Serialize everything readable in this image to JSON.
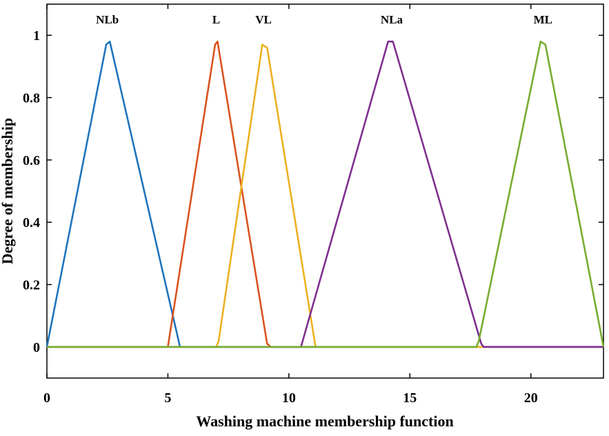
{
  "chart_data": {
    "type": "line",
    "xlabel": "Washing machine membership function",
    "ylabel": "Degree of membership",
    "xlim": [
      0,
      23
    ],
    "ylim": [
      -0.1,
      1.1
    ],
    "x_ticks": [
      0,
      5,
      10,
      15,
      20
    ],
    "y_ticks": [
      0,
      0.2,
      0.4,
      0.6,
      0.8,
      1
    ],
    "x_tick_labels": [
      "0",
      "5",
      "10",
      "15",
      "20"
    ],
    "y_tick_labels": [
      "0",
      "0.2",
      "0.4",
      "0.6",
      "0.8",
      "1"
    ],
    "grid": false,
    "series": [
      {
        "name": "NLb",
        "color": "#1f74bd",
        "points": [
          [
            0,
            0
          ],
          [
            2.45,
            0.97
          ],
          [
            2.6,
            0.98
          ],
          [
            5.5,
            0
          ],
          [
            23,
            0
          ]
        ]
      },
      {
        "name": "L",
        "color": "#d9531e",
        "points": [
          [
            0,
            0
          ],
          [
            5.0,
            0
          ],
          [
            6.95,
            0.97
          ],
          [
            7.05,
            0.98
          ],
          [
            9.1,
            0.01
          ],
          [
            9.25,
            0
          ],
          [
            23,
            0
          ]
        ]
      },
      {
        "name": "VL",
        "color": "#edb120",
        "points": [
          [
            0,
            0
          ],
          [
            7.0,
            0
          ],
          [
            7.1,
            0.02
          ],
          [
            8.9,
            0.97
          ],
          [
            9.1,
            0.96
          ],
          [
            11.1,
            0
          ],
          [
            23,
            0
          ]
        ]
      },
      {
        "name": "NLa",
        "color": "#7e2f8e",
        "points": [
          [
            0,
            0
          ],
          [
            10.5,
            0
          ],
          [
            14.1,
            0.98
          ],
          [
            14.3,
            0.98
          ],
          [
            17.95,
            0.01
          ],
          [
            18.05,
            0
          ],
          [
            23,
            0
          ]
        ]
      },
      {
        "name": "ML",
        "color": "#77ac30",
        "points": [
          [
            0,
            0
          ],
          [
            17.75,
            0
          ],
          [
            17.85,
            0.02
          ],
          [
            20.4,
            0.98
          ],
          [
            20.6,
            0.97
          ],
          [
            23,
            0
          ]
        ]
      }
    ],
    "labels": [
      {
        "text": "NLb",
        "x": 2.5
      },
      {
        "text": "L",
        "x": 7.0
      },
      {
        "text": "VL",
        "x": 8.95
      },
      {
        "text": "NLa",
        "x": 14.25
      },
      {
        "text": "ML",
        "x": 20.5
      }
    ]
  }
}
